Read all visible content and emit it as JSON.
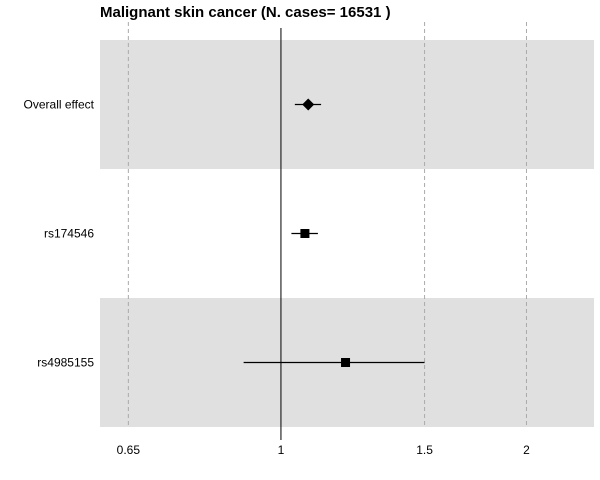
{
  "chart_data": {
    "type": "forest",
    "title": "Malignant skin cancer  (N. cases= 16531 )",
    "x_scale": "log",
    "xlim": [
      0.6,
      2.42
    ],
    "reference_line": 1,
    "xticks": [
      {
        "value": 0.65,
        "label": "0.65"
      },
      {
        "value": 1,
        "label": "1"
      },
      {
        "value": 1.5,
        "label": "1.5"
      },
      {
        "value": 2,
        "label": "2"
      }
    ],
    "rows": [
      {
        "label": "Overall effect",
        "estimate": 1.08,
        "lower": 1.04,
        "upper": 1.12,
        "marker": "diamond",
        "shaded": true
      },
      {
        "label": "rs174546",
        "estimate": 1.07,
        "lower": 1.03,
        "upper": 1.11,
        "marker": "square",
        "shaded": false
      },
      {
        "label": "rs4985155",
        "estimate": 1.2,
        "lower": 0.9,
        "upper": 1.5,
        "marker": "square",
        "shaded": true
      }
    ],
    "colors": {
      "band": "#e0e0e0",
      "grid": "#aaaaaa",
      "mark": "#000000"
    }
  }
}
